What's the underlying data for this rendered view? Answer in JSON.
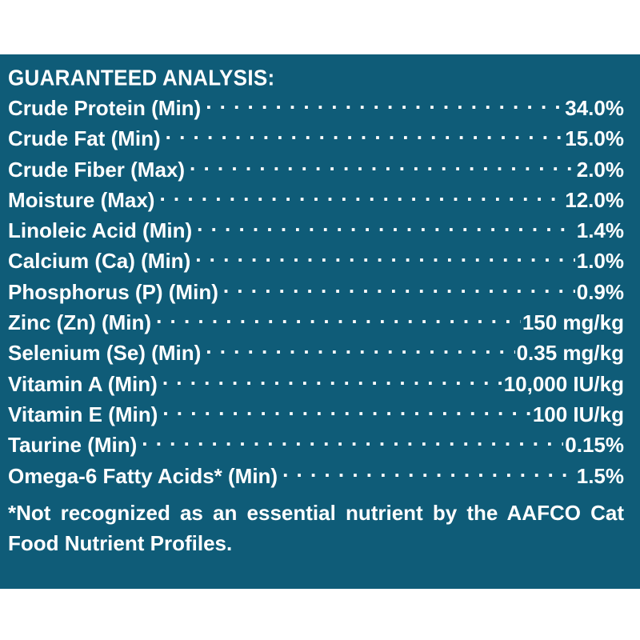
{
  "panel": {
    "background": "#0f5c78",
    "text_color": "#ffffff"
  },
  "heading": "GUARANTEED ANALYSIS:",
  "rows": [
    {
      "label": "Crude Protein (Min)",
      "value": "34.0%"
    },
    {
      "label": "Crude Fat (Min)",
      "value": "15.0%"
    },
    {
      "label": "Crude Fiber (Max)",
      "value": "2.0%"
    },
    {
      "label": "Moisture (Max)",
      "value": "12.0%"
    },
    {
      "label": "Linoleic Acid (Min)",
      "value": "1.4%"
    },
    {
      "label": "Calcium (Ca) (Min)",
      "value": "1.0%"
    },
    {
      "label": "Phosphorus (P) (Min)",
      "value": "0.9%"
    },
    {
      "label": "Zinc (Zn) (Min)",
      "value": "150 mg/kg"
    },
    {
      "label": "Selenium (Se) (Min)",
      "value": "0.35 mg/kg"
    },
    {
      "label": "Vitamin A (Min)",
      "value": "10,000 IU/kg"
    },
    {
      "label": "Vitamin E (Min)",
      "value": "100 IU/kg"
    },
    {
      "label": "Taurine (Min)",
      "value": "0.15%"
    },
    {
      "label": "Omega-6 Fatty Acids* (Min)",
      "value": "1.5%"
    }
  ],
  "footnote": "*Not recognized as an essential nutrient by the AAFCO Cat Food Nutrient Profiles."
}
